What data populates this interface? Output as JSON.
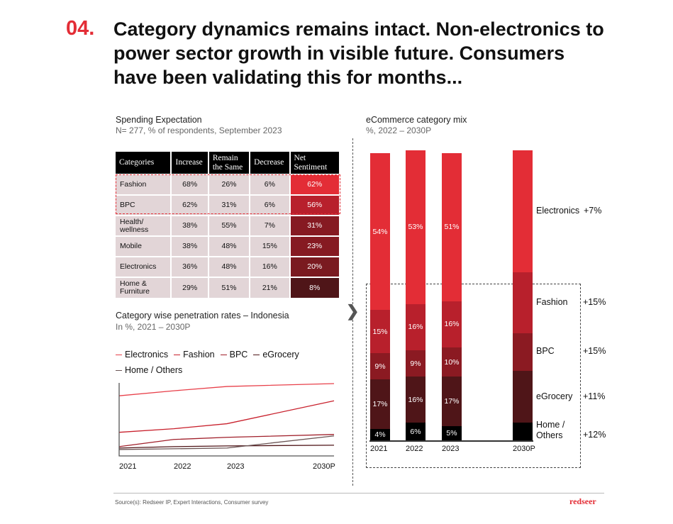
{
  "header": {
    "number": "04.",
    "title": "Category dynamics remains intact. Non-electronics to power sector growth in visible future. Consumers have been validating this for months..."
  },
  "survey": {
    "title": "Spending Expectation",
    "subtitle": "N= 277, % of respondents, September 2023",
    "columns": [
      "Categories",
      "Increase",
      "Remain the Same",
      "Decrease",
      "Net Sentiment"
    ],
    "rows": [
      {
        "category": "Fashion",
        "increase": "68%",
        "same": "26%",
        "decrease": "6%",
        "net": "62%",
        "color": "#e32d36"
      },
      {
        "category": "BPC",
        "increase": "62%",
        "same": "31%",
        "decrease": "6%",
        "net": "56%",
        "color": "#b8202c"
      },
      {
        "category": "Health/ wellness",
        "increase": "38%",
        "same": "55%",
        "decrease": "7%",
        "net": "31%",
        "color": "#861a22"
      },
      {
        "category": "Mobile",
        "increase": "38%",
        "same": "48%",
        "decrease": "15%",
        "net": "23%",
        "color": "#861a22"
      },
      {
        "category": "Electronics",
        "increase": "36%",
        "same": "48%",
        "decrease": "16%",
        "net": "20%",
        "color": "#7a1a20"
      },
      {
        "category": "Home & Furniture",
        "increase": "29%",
        "same": "51%",
        "decrease": "21%",
        "net": "8%",
        "color": "#4f1518"
      }
    ]
  },
  "chart_data": [
    {
      "type": "line",
      "title": "Category wise penetration rates – Indonesia",
      "subtitle": "In %, 2021 – 2030P",
      "x": [
        "2021",
        "2022",
        "2023",
        "2030P"
      ],
      "ylim": [
        0,
        100
      ],
      "legend": "top",
      "series": [
        {
          "name": "Electronics",
          "values": [
            83,
            90,
            96,
            100
          ],
          "color": "#e8404a"
        },
        {
          "name": "Fashion",
          "values": [
            32,
            37,
            44,
            76
          ],
          "color": "#c8202c"
        },
        {
          "name": "BPC",
          "values": [
            12,
            22,
            25,
            29
          ],
          "color": "#a01f2a"
        },
        {
          "name": "eGrocery",
          "values": [
            10,
            12,
            13,
            14
          ],
          "color": "#4f1518"
        },
        {
          "name": "Home / Others",
          "values": [
            8,
            9,
            10,
            27
          ],
          "color": "#6b5555"
        }
      ]
    },
    {
      "type": "bar",
      "stacked": true,
      "title": "eCommerce category mix",
      "subtitle": "%, 2022 – 2030P",
      "categories": [
        "2021",
        "2022",
        "2023",
        "2030P"
      ],
      "ylim": [
        0,
        100
      ],
      "series": [
        {
          "name": "Home / Others",
          "values": [
            4,
            6,
            5,
            6
          ],
          "labels": [
            "4%",
            "6%",
            "5%",
            ""
          ],
          "growth": "+12%",
          "color": "#000000"
        },
        {
          "name": "eGrocery",
          "values": [
            17,
            16,
            17,
            18
          ],
          "labels": [
            "17%",
            "16%",
            "17%",
            ""
          ],
          "growth": "+11%",
          "color": "#4f1518"
        },
        {
          "name": "BPC",
          "values": [
            9,
            9,
            10,
            13
          ],
          "labels": [
            "9%",
            "9%",
            "10%",
            ""
          ],
          "growth": "+15%",
          "color": "#8b1a22"
        },
        {
          "name": "Fashion",
          "values": [
            15,
            16,
            16,
            21
          ],
          "labels": [
            "15%",
            "16%",
            "16%",
            ""
          ],
          "growth": "+15%",
          "color": "#b8202c"
        },
        {
          "name": "Electronics",
          "values": [
            54,
            53,
            51,
            42
          ],
          "labels": [
            "54%",
            "53%",
            "51%",
            ""
          ],
          "growth": "+7%",
          "color": "#e32d36"
        }
      ]
    }
  ],
  "footer": {
    "source": "Source(s): Redseer IP, Expert Interactions, Consumer survey",
    "logo": "redseer"
  }
}
